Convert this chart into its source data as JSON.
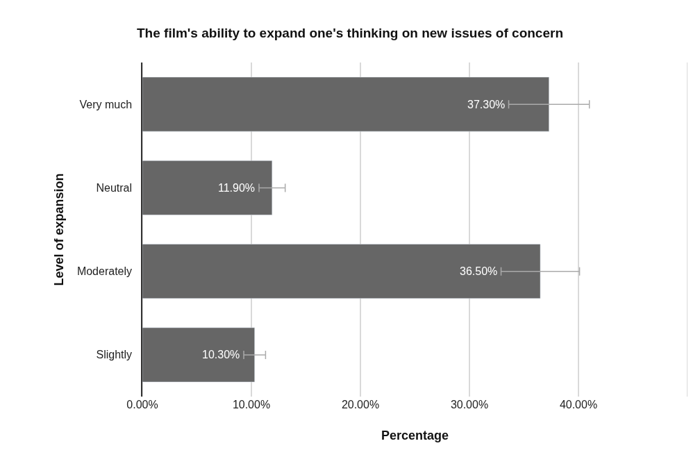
{
  "chart_data": {
    "type": "bar",
    "orientation": "horizontal",
    "title": "The film's ability to expand one's thinking on new issues of concern",
    "xlabel": "Percentage",
    "ylabel": "Level of expansion",
    "categories": [
      "Very much",
      "Neutral",
      "Moderately",
      "Slightly"
    ],
    "values": [
      37.3,
      11.9,
      36.5,
      10.3
    ],
    "value_labels": [
      "37.30%",
      "11.90%",
      "36.50%",
      "10.30%"
    ],
    "errors": [
      3.7,
      1.2,
      3.6,
      1.0
    ],
    "color": "#666666",
    "xlim": [
      0,
      50
    ],
    "xticks": [
      {
        "value": 0,
        "label": "0.00%"
      },
      {
        "value": 10,
        "label": "10.00%"
      },
      {
        "value": 20,
        "label": "20.00%"
      },
      {
        "value": 30,
        "label": "30.00%"
      },
      {
        "value": 40,
        "label": "40.00%"
      },
      {
        "value": 50,
        "label": null
      }
    ],
    "grid": "x",
    "legend": false
  }
}
